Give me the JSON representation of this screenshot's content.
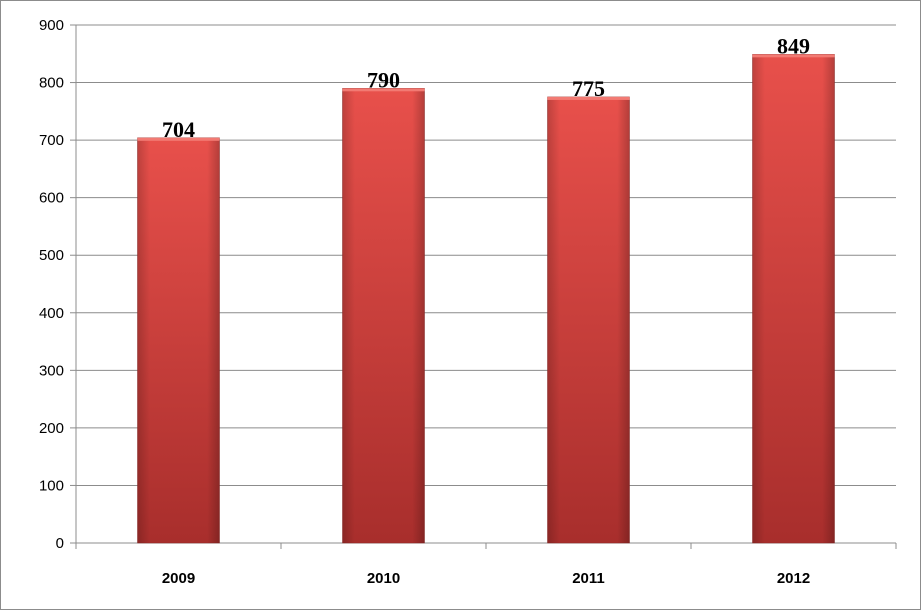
{
  "chart_data": {
    "type": "bar",
    "categories": [
      "2009",
      "2010",
      "2011",
      "2012"
    ],
    "values": [
      704,
      790,
      775,
      849
    ],
    "data_labels": [
      "704",
      "790",
      "775",
      "849"
    ],
    "title": "",
    "xlabel": "",
    "ylabel": "",
    "ylim": [
      0,
      900
    ],
    "yticks": [
      "0",
      "100",
      "200",
      "300",
      "400",
      "500",
      "600",
      "700",
      "800",
      "900"
    ],
    "grid": true,
    "legend": "none",
    "colors": {
      "bar_light": "#e8504b",
      "bar_mid": "#d43d3a",
      "bar_dark": "#a82e2c",
      "gridline": "#8c8c8c",
      "axis": "#8c8c8c"
    }
  }
}
